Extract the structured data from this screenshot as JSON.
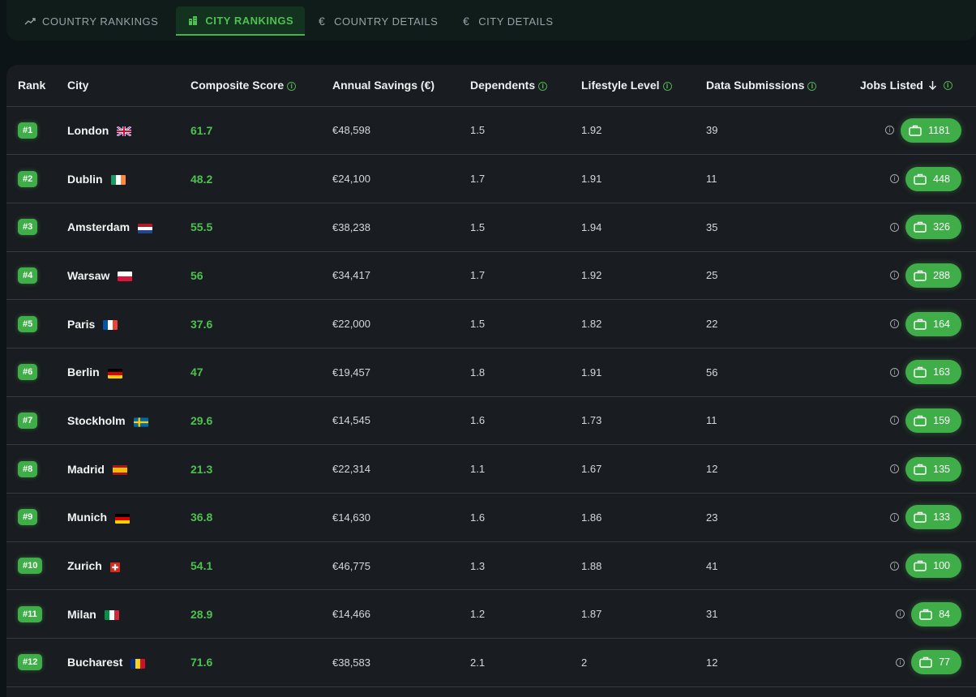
{
  "tabs": [
    {
      "label": "COUNTRY RANKINGS",
      "icon": "trending-up-icon",
      "active": false
    },
    {
      "label": "CITY RANKINGS",
      "icon": "city-buildings-icon",
      "active": true
    },
    {
      "label": "COUNTRY DETAILS",
      "icon": "euro-icon",
      "active": false
    },
    {
      "label": "CITY DETAILS",
      "icon": "euro-icon",
      "active": false
    }
  ],
  "table": {
    "headers": {
      "rank": "Rank",
      "city": "City",
      "score": "Composite Score",
      "savings": "Annual Savings (€)",
      "dependents": "Dependents",
      "lifestyle": "Lifestyle Level",
      "submissions": "Data Submissions",
      "jobs": "Jobs Listed"
    },
    "sort": {
      "column": "jobs",
      "direction": "descending"
    },
    "accent_color": "#4caf50",
    "rows": [
      {
        "rank": "#1",
        "city": "London",
        "flag": "gb",
        "score": "61.7",
        "savings": "€48,598",
        "dependents": "1.5",
        "lifestyle": "1.92",
        "submissions": "39",
        "jobs": "1181"
      },
      {
        "rank": "#2",
        "city": "Dublin",
        "flag": "ie",
        "score": "48.2",
        "savings": "€24,100",
        "dependents": "1.7",
        "lifestyle": "1.91",
        "submissions": "11",
        "jobs": "448"
      },
      {
        "rank": "#3",
        "city": "Amsterdam",
        "flag": "nl",
        "score": "55.5",
        "savings": "€38,238",
        "dependents": "1.5",
        "lifestyle": "1.94",
        "submissions": "35",
        "jobs": "326"
      },
      {
        "rank": "#4",
        "city": "Warsaw",
        "flag": "pl",
        "score": "56",
        "savings": "€34,417",
        "dependents": "1.7",
        "lifestyle": "1.92",
        "submissions": "25",
        "jobs": "288"
      },
      {
        "rank": "#5",
        "city": "Paris",
        "flag": "fr",
        "score": "37.6",
        "savings": "€22,000",
        "dependents": "1.5",
        "lifestyle": "1.82",
        "submissions": "22",
        "jobs": "164"
      },
      {
        "rank": "#6",
        "city": "Berlin",
        "flag": "de",
        "score": "47",
        "savings": "€19,457",
        "dependents": "1.8",
        "lifestyle": "1.91",
        "submissions": "56",
        "jobs": "163"
      },
      {
        "rank": "#7",
        "city": "Stockholm",
        "flag": "se",
        "score": "29.6",
        "savings": "€14,545",
        "dependents": "1.6",
        "lifestyle": "1.73",
        "submissions": "11",
        "jobs": "159"
      },
      {
        "rank": "#8",
        "city": "Madrid",
        "flag": "es",
        "score": "21.3",
        "savings": "€22,314",
        "dependents": "1.1",
        "lifestyle": "1.67",
        "submissions": "12",
        "jobs": "135"
      },
      {
        "rank": "#9",
        "city": "Munich",
        "flag": "de",
        "score": "36.8",
        "savings": "€14,630",
        "dependents": "1.6",
        "lifestyle": "1.86",
        "submissions": "23",
        "jobs": "133"
      },
      {
        "rank": "#10",
        "city": "Zurich",
        "flag": "ch",
        "score": "54.1",
        "savings": "€46,775",
        "dependents": "1.3",
        "lifestyle": "1.88",
        "submissions": "41",
        "jobs": "100"
      },
      {
        "rank": "#11",
        "city": "Milan",
        "flag": "it",
        "score": "28.9",
        "savings": "€14,466",
        "dependents": "1.2",
        "lifestyle": "1.87",
        "submissions": "31",
        "jobs": "84"
      },
      {
        "rank": "#12",
        "city": "Bucharest",
        "flag": "ro",
        "score": "71.6",
        "savings": "€38,583",
        "dependents": "2.1",
        "lifestyle": "2",
        "submissions": "12",
        "jobs": "77"
      }
    ]
  }
}
